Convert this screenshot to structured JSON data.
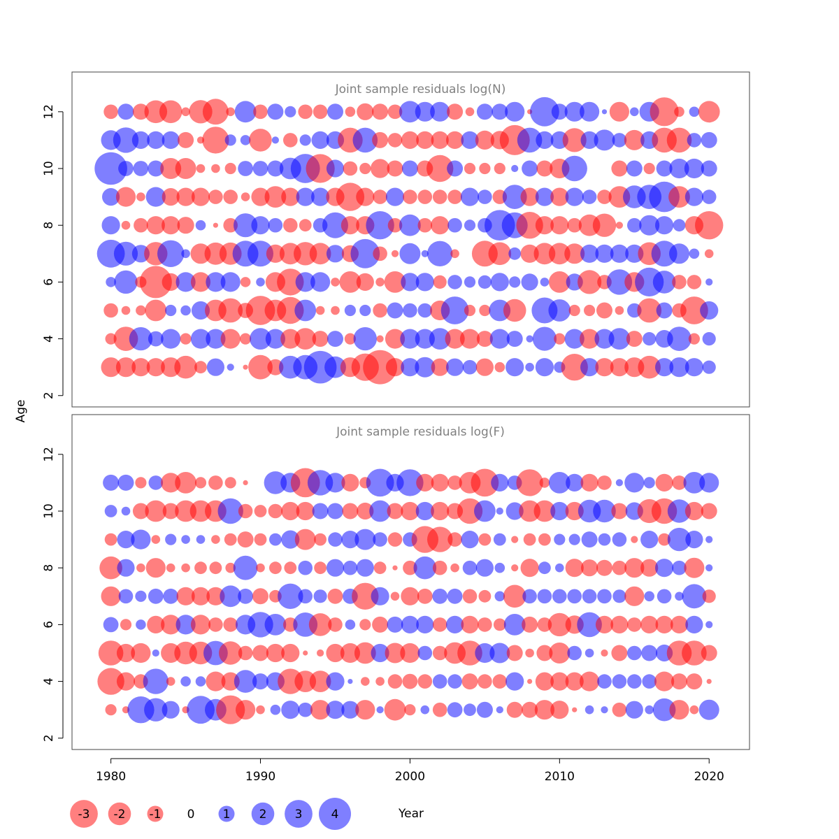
{
  "chart_data": {
    "type": "scatter",
    "subtype": "bubble",
    "shared_xlabel": "Year",
    "shared_ylabel": "Age",
    "xlim": [
      1977.4,
      2022.7
    ],
    "x_ticks": [
      1980,
      1990,
      2000,
      2010,
      2020
    ],
    "y_ticks": [
      2,
      4,
      6,
      8,
      10,
      12
    ],
    "colors": {
      "negative": "#ff0000",
      "positive": "#0000ff",
      "opacity": 0.5,
      "frame": "#444444",
      "title": "#808080"
    },
    "years": [
      1980,
      1981,
      1982,
      1983,
      1984,
      1985,
      1986,
      1987,
      1988,
      1989,
      1990,
      1991,
      1992,
      1993,
      1994,
      1995,
      1996,
      1997,
      1998,
      1999,
      2000,
      2001,
      2002,
      2003,
      2004,
      2005,
      2006,
      2007,
      2008,
      2009,
      2010,
      2011,
      2012,
      2013,
      2014,
      2015,
      2016,
      2017,
      2018,
      2019,
      2020
    ],
    "legend": {
      "labels": [
        "-3",
        "-2",
        "-1",
        "0",
        "1",
        "2",
        "3",
        "4"
      ],
      "values": [
        -3,
        -2,
        -1,
        0,
        1,
        2,
        3,
        4
      ]
    },
    "panels": [
      {
        "title": "Joint sample residuals log(N)",
        "ylim": [
          1.6,
          13.4
        ],
        "ages": [
          3,
          4,
          5,
          6,
          7,
          8,
          9,
          10,
          11,
          12
        ],
        "residuals": [
          [
            -1.5,
            -1.5,
            -1.3,
            -1.3,
            -1.5,
            -2.0,
            -0.6,
            1.2,
            0.2,
            -0.1,
            -2.3,
            -1.0,
            2.0,
            2.3,
            4.1,
            1.8,
            -1.5,
            -2.9,
            -4.5,
            -1.3,
            1.3,
            1.6,
            -1.2,
            1.2,
            0.8,
            -1.2,
            -0.4,
            1.3,
            0.3,
            1.3,
            0.5,
            -2.8,
            1.3,
            -1.3,
            -1.3,
            -1.5,
            -2.0,
            1.3,
            1.5,
            1.3,
            0.7
          ],
          [
            -0.5,
            -2.3,
            2.1,
            0.9,
            1.5,
            -0.5,
            1.5,
            1.5,
            -1.5,
            -0.5,
            1.8,
            1.5,
            -1.5,
            -1.8,
            -1.0,
            1.0,
            -0.5,
            2.1,
            -0.2,
            -1.5,
            1.5,
            1.5,
            1.8,
            -1.5,
            -1.5,
            -1.0,
            1.5,
            1.0,
            0.2,
            2.2,
            -0.5,
            1.5,
            -1.5,
            1.5,
            1.8,
            -1.0,
            0.7,
            1.2,
            2.3,
            -0.5,
            0.7
          ],
          [
            -0.8,
            -0.3,
            -0.4,
            -1.8,
            0.5,
            0.4,
            1.3,
            -1.8,
            -2.3,
            -0.9,
            -3.3,
            -1.8,
            -2.8,
            1.8,
            -0.3,
            -0.3,
            0.5,
            0.5,
            -0.8,
            1.0,
            0.8,
            0.8,
            -1.5,
            3.0,
            -0.5,
            -0.5,
            1.8,
            -2.0,
            0.0,
            2.6,
            1.9,
            -0.5,
            -0.5,
            -1.0,
            -0.3,
            0.8,
            -2.3,
            1.0,
            -0.8,
            -3.0,
            1.3
          ],
          [
            0.4,
            2.1,
            -0.5,
            -4.0,
            -1.2,
            1.5,
            -1.5,
            1.5,
            1.5,
            -0.4,
            0.3,
            -1.5,
            -2.8,
            1.5,
            1.5,
            -0.3,
            -1.8,
            -1.2,
            -0.3,
            -1.8,
            1.3,
            1.3,
            -0.7,
            0.8,
            0.5,
            0.7,
            1.3,
            0.5,
            1.1,
            0.3,
            -1.8,
            1.1,
            -2.2,
            -0.8,
            2.5,
            -1.5,
            3.2,
            2.0,
            -0.8,
            -0.8,
            0.2
          ],
          [
            3.0,
            2.2,
            1.2,
            -2.1,
            2.8,
            0.3,
            -1.6,
            -1.9,
            -1.9,
            2.6,
            2.6,
            -1.3,
            -1.8,
            -2.1,
            -1.8,
            1.2,
            -1.1,
            3.3,
            -0.8,
            -0.2,
            1.7,
            0.2,
            2.5,
            -0.3,
            0.0,
            -2.6,
            -2.0,
            0.6,
            -1.3,
            -1.8,
            -1.8,
            -1.6,
            1.3,
            1.3,
            1.3,
            1.3,
            -2.0,
            2.6,
            1.6,
            0.4,
            -0.3
          ],
          [
            1.3,
            -0.3,
            -0.8,
            -1.3,
            -1.3,
            -1.1,
            0.4,
            -0.1,
            -0.8,
            2.2,
            1.3,
            0.8,
            -0.8,
            -0.6,
            0.8,
            2.6,
            -1.3,
            -1.3,
            3.1,
            -0.8,
            1.8,
            -0.8,
            -1.3,
            0.8,
            0.5,
            0.8,
            3.6,
            2.6,
            -2.8,
            -1.3,
            -1.3,
            -0.8,
            -1.8,
            -2.1,
            -0.2,
            0.8,
            1.6,
            1.3,
            0.6,
            -1.3,
            -3.1
          ],
          [
            1.2,
            -1.5,
            -0.3,
            1.5,
            -1.2,
            -1.3,
            -1.3,
            -0.8,
            -0.8,
            -0.3,
            -1.3,
            -1.8,
            -1.3,
            1.3,
            1.3,
            -1.3,
            -3.1,
            -1.3,
            -0.8,
            1.3,
            -0.8,
            -0.8,
            -0.8,
            -0.8,
            1.3,
            0.8,
            -0.8,
            2.3,
            -1.3,
            1.3,
            -1.3,
            1.3,
            0.8,
            -0.8,
            -1.8,
            2.0,
            2.3,
            3.6,
            -1.8,
            1.3,
            0.8
          ],
          [
            4.1,
            0.9,
            0.9,
            1.0,
            -1.7,
            -1.7,
            -0.3,
            -0.3,
            -0.5,
            0.9,
            0.9,
            1.0,
            1.8,
            3.3,
            -3.2,
            1.2,
            -0.8,
            -0.5,
            -1.4,
            -1.0,
            1.0,
            -1.0,
            -2.8,
            1.0,
            -0.5,
            -0.5,
            -0.5,
            0.2,
            1.0,
            -1.0,
            -1.5,
            2.5,
            0.0,
            0.0,
            -1.0,
            1.0,
            -0.5,
            1.0,
            1.5,
            1.5,
            1.0
          ],
          [
            1.5,
            2.5,
            1.2,
            1.2,
            1.2,
            -1.0,
            -0.2,
            -2.8,
            0.5,
            0.4,
            -2.0,
            0.2,
            -0.8,
            0.5,
            1.2,
            1.2,
            -2.4,
            2.4,
            -1.0,
            -0.8,
            -1.2,
            -1.2,
            -1.2,
            -1.2,
            1.2,
            -1.4,
            -1.3,
            -3.5,
            2.4,
            1.2,
            1.2,
            -2.2,
            1.2,
            1.7,
            0.8,
            -1.6,
            1.2,
            -2.4,
            -2.4,
            0.8,
            1.0
          ],
          [
            -0.8,
            1.0,
            -1.0,
            -2.0,
            -2.0,
            -0.3,
            -2.1,
            -2.6,
            -0.3,
            1.8,
            -0.8,
            1.0,
            0.5,
            -0.8,
            -0.8,
            1.0,
            -0.4,
            -1.1,
            -1.0,
            -0.8,
            1.8,
            1.5,
            1.5,
            -1.0,
            -0.3,
            1.0,
            1.0,
            1.5,
            -0.1,
            3.3,
            1.0,
            1.5,
            1.5,
            0.1,
            -1.5,
            0.3,
            1.5,
            -3.2,
            -0.4,
            0.4,
            -1.8
          ]
        ]
      },
      {
        "title": "Joint sample residuals log(F)",
        "ylim": [
          1.6,
          13.4
        ],
        "ages": [
          3,
          4,
          5,
          6,
          7,
          8,
          9,
          10,
          11
        ],
        "residuals": [
          [
            -0.5,
            -0.2,
            2.8,
            2.1,
            1.2,
            -0.2,
            3.0,
            1.8,
            -3.2,
            -1.5,
            -0.3,
            0.4,
            1.3,
            0.8,
            -1.5,
            1.3,
            1.2,
            -1.5,
            0.2,
            -1.8,
            -0.5,
            0.3,
            -0.8,
            0.9,
            0.6,
            1.0,
            0.2,
            -1.0,
            -1.0,
            -1.5,
            -1.3,
            -0.1,
            0.3,
            0.2,
            -0.8,
            1.2,
            0.3,
            2.0,
            -1.5,
            -0.3,
            1.6
          ],
          [
            -2.8,
            -1.3,
            -0.8,
            2.5,
            -0.3,
            0.4,
            0.4,
            -1.5,
            -1.3,
            2.0,
            1.0,
            1.3,
            -2.5,
            -1.8,
            -1.8,
            1.3,
            0.1,
            -0.3,
            -0.3,
            -0.8,
            -0.9,
            -0.8,
            0.8,
            0.8,
            -1.0,
            -0.8,
            -0.8,
            1.3,
            -0.1,
            -1.3,
            -1.3,
            -1.3,
            -1.5,
            0.8,
            0.8,
            0.8,
            0.8,
            -1.5,
            -1.0,
            -1.0,
            -0.1
          ],
          [
            -2.4,
            -1.3,
            -1.5,
            0.2,
            -1.5,
            -2.0,
            -2.0,
            2.3,
            -2.1,
            -0.8,
            -1.0,
            -1.3,
            -1.3,
            -0.1,
            -0.2,
            -1.3,
            -1.5,
            -1.8,
            1.3,
            -1.6,
            -1.5,
            0.8,
            -0.8,
            -1.8,
            -2.4,
            1.5,
            1.6,
            -1.0,
            -0.3,
            -1.0,
            -1.7,
            0.8,
            0.3,
            -0.2,
            -1.0,
            0.8,
            1.0,
            1.1,
            -2.4,
            -2.4,
            -1.0
          ],
          [
            0.9,
            -0.5,
            0.4,
            -1.2,
            -1.5,
            1.5,
            -1.5,
            -0.8,
            -0.8,
            1.5,
            2.5,
            1.8,
            -0.8,
            2.3,
            -2.0,
            -0.8,
            0.4,
            -0.5,
            -1.0,
            1.0,
            1.2,
            1.2,
            -0.8,
            1.2,
            -1.2,
            -0.8,
            -0.6,
            1.8,
            -1.0,
            -0.8,
            -2.1,
            -1.3,
            2.4,
            -1.2,
            -1.2,
            -0.8,
            -1.2,
            -1.2,
            -1.2,
            1.2,
            0.2
          ],
          [
            -1.5,
            0.8,
            0.5,
            0.9,
            0.9,
            -1.3,
            -1.3,
            -1.3,
            1.8,
            0.9,
            -1.0,
            -0.6,
            2.5,
            0.8,
            0.7,
            -0.9,
            0.9,
            -2.8,
            1.3,
            -0.3,
            -1.3,
            -0.9,
            0.9,
            0.9,
            -0.8,
            -0.6,
            0.4,
            -2.0,
            0.8,
            0.8,
            0.8,
            0.8,
            0.8,
            0.8,
            0.7,
            -1.5,
            0.4,
            0.8,
            0.3,
            2.3,
            -0.7
          ],
          [
            -2.0,
            1.2,
            -0.3,
            -1.5,
            -0.3,
            -0.3,
            -0.6,
            -0.6,
            -0.4,
            2.3,
            -0.3,
            -0.6,
            -0.6,
            0.8,
            -0.6,
            1.2,
            0.8,
            1.2,
            -0.6,
            -0.1,
            -0.8,
            2.0,
            -0.8,
            -0.3,
            0.8,
            1.2,
            0.4,
            -0.2,
            -1.3,
            0.6,
            0.3,
            -1.3,
            -1.1,
            -1.0,
            -0.8,
            -1.5,
            -1.2,
            1.3,
            0.8,
            -1.6,
            0.2
          ],
          [
            -0.6,
            1.2,
            1.5,
            -0.3,
            0.5,
            0.3,
            0.3,
            -0.3,
            -0.6,
            -1.0,
            -0.6,
            0.6,
            1.3,
            -1.7,
            -0.6,
            0.8,
            1.2,
            1.7,
            0.8,
            -0.8,
            0.8,
            -2.8,
            -2.5,
            -0.8,
            1.2,
            -0.6,
            0.6,
            -0.2,
            -0.6,
            -0.6,
            0.5,
            0.5,
            1.0,
            0.6,
            0.8,
            -0.2,
            1.2,
            -0.6,
            2.1,
            1.2,
            0.2
          ],
          [
            0.6,
            0.3,
            -1.0,
            -1.8,
            -1.0,
            -1.8,
            -1.8,
            -1.8,
            2.5,
            -0.8,
            -0.6,
            -0.8,
            -1.3,
            -1.3,
            1.0,
            1.0,
            -1.0,
            -1.1,
            1.8,
            -1.0,
            -1.3,
            1.3,
            -1.3,
            -1.0,
            -2.5,
            1.8,
            0.2,
            1.2,
            -1.8,
            -1.8,
            1.3,
            -1.3,
            2.0,
            2.0,
            -1.0,
            1.2,
            -2.2,
            -2.5,
            2.1,
            -1.3,
            -1.0
          ],
          [
            1.0,
            1.0,
            -0.5,
            0.8,
            -1.5,
            -1.8,
            -0.5,
            -0.8,
            -0.5,
            -0.1,
            0.0,
            2.0,
            1.5,
            -3.3,
            2.5,
            1.5,
            -1.2,
            -0.5,
            3.0,
            1.2,
            2.8,
            -1.2,
            -1.2,
            -0.8,
            -1.8,
            -3.0,
            1.2,
            0.8,
            -2.8,
            -0.4,
            1.8,
            1.2,
            -1.2,
            -0.8,
            0.2,
            1.5,
            0.5,
            -1.2,
            -0.8,
            1.8,
            1.5
          ]
        ]
      }
    ]
  }
}
